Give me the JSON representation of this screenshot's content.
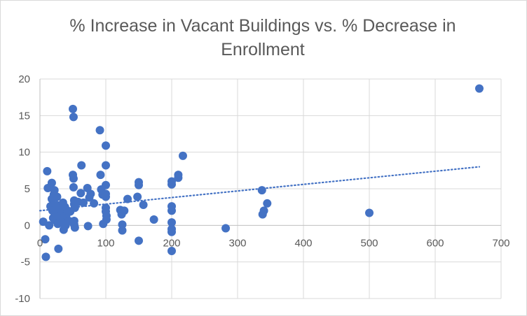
{
  "chart_data": {
    "type": "scatter",
    "title": "% Increase in Vacant Buildings vs. % Decrease in Enrollment",
    "xlabel": "",
    "ylabel": "",
    "xlim": [
      0,
      700
    ],
    "ylim": [
      -10,
      20
    ],
    "x_ticks": [
      0,
      100,
      200,
      300,
      400,
      500,
      600,
      700
    ],
    "y_ticks": [
      -10,
      -5,
      0,
      5,
      10,
      15,
      20
    ],
    "grid": true,
    "legend": "none",
    "marker_color": "#4472C4",
    "trendline": {
      "type": "linear",
      "style": "dotted",
      "color": "#4472C4",
      "x": [
        0,
        667
      ],
      "y": [
        2.0,
        8.0
      ]
    },
    "points": [
      {
        "x": 5,
        "y": 0.5
      },
      {
        "x": 8,
        "y": -1.9
      },
      {
        "x": 9,
        "y": -4.3
      },
      {
        "x": 11,
        "y": 7.4
      },
      {
        "x": 12,
        "y": 5.1
      },
      {
        "x": 14,
        "y": 0.0
      },
      {
        "x": 16,
        "y": 2.6
      },
      {
        "x": 18,
        "y": 5.8
      },
      {
        "x": 18,
        "y": 3.6
      },
      {
        "x": 19,
        "y": 2.0
      },
      {
        "x": 20,
        "y": 1.0
      },
      {
        "x": 21,
        "y": 4.2
      },
      {
        "x": 22,
        "y": 4.8
      },
      {
        "x": 23,
        "y": 0.7
      },
      {
        "x": 24,
        "y": 1.6
      },
      {
        "x": 25,
        "y": 2.8
      },
      {
        "x": 26,
        "y": 3.9
      },
      {
        "x": 27,
        "y": 0.2
      },
      {
        "x": 28,
        "y": -3.2
      },
      {
        "x": 29,
        "y": 1.2
      },
      {
        "x": 30,
        "y": 2.3
      },
      {
        "x": 32,
        "y": 0.9
      },
      {
        "x": 34,
        "y": 0.4
      },
      {
        "x": 35,
        "y": 3.1
      },
      {
        "x": 36,
        "y": -0.6
      },
      {
        "x": 37,
        "y": 1.8
      },
      {
        "x": 38,
        "y": 2.5
      },
      {
        "x": 39,
        "y": 0.0
      },
      {
        "x": 40,
        "y": 1.4
      },
      {
        "x": 42,
        "y": 2.0
      },
      {
        "x": 44,
        "y": 0.6
      },
      {
        "x": 46,
        "y": 1.9
      },
      {
        "x": 50,
        "y": 15.9
      },
      {
        "x": 51,
        "y": 14.8
      },
      {
        "x": 50,
        "y": 6.9
      },
      {
        "x": 51,
        "y": 6.4
      },
      {
        "x": 51,
        "y": 5.2
      },
      {
        "x": 52,
        "y": 3.4
      },
      {
        "x": 52,
        "y": 2.9
      },
      {
        "x": 53,
        "y": 2.4
      },
      {
        "x": 52,
        "y": 0.6
      },
      {
        "x": 52,
        "y": 0.1
      },
      {
        "x": 53,
        "y": -0.3
      },
      {
        "x": 58,
        "y": 3.2
      },
      {
        "x": 62,
        "y": 4.4
      },
      {
        "x": 63,
        "y": 8.2
      },
      {
        "x": 66,
        "y": 3.1
      },
      {
        "x": 72,
        "y": 5.1
      },
      {
        "x": 73,
        "y": -0.1
      },
      {
        "x": 75,
        "y": 3.8
      },
      {
        "x": 77,
        "y": 4.3
      },
      {
        "x": 82,
        "y": 3.0
      },
      {
        "x": 91,
        "y": 13.0
      },
      {
        "x": 92,
        "y": 6.9
      },
      {
        "x": 93,
        "y": 4.9
      },
      {
        "x": 95,
        "y": 4.2
      },
      {
        "x": 96,
        "y": 0.2
      },
      {
        "x": 100,
        "y": 10.9
      },
      {
        "x": 100,
        "y": 8.2
      },
      {
        "x": 100,
        "y": 5.5
      },
      {
        "x": 100,
        "y": 4.3
      },
      {
        "x": 100,
        "y": 3.9
      },
      {
        "x": 100,
        "y": 2.4
      },
      {
        "x": 100,
        "y": 1.9
      },
      {
        "x": 101,
        "y": 1.3
      },
      {
        "x": 101,
        "y": 0.8
      },
      {
        "x": 122,
        "y": 2.1
      },
      {
        "x": 124,
        "y": 1.5
      },
      {
        "x": 125,
        "y": 0.1
      },
      {
        "x": 125,
        "y": -0.7
      },
      {
        "x": 128,
        "y": 2.0
      },
      {
        "x": 133,
        "y": 3.6
      },
      {
        "x": 148,
        "y": 3.9
      },
      {
        "x": 150,
        "y": 5.9
      },
      {
        "x": 150,
        "y": 5.5
      },
      {
        "x": 150,
        "y": -2.1
      },
      {
        "x": 157,
        "y": 2.8
      },
      {
        "x": 173,
        "y": 0.8
      },
      {
        "x": 200,
        "y": 6.0
      },
      {
        "x": 200,
        "y": 5.6
      },
      {
        "x": 200,
        "y": 2.6
      },
      {
        "x": 200,
        "y": 2.0
      },
      {
        "x": 200,
        "y": 0.4
      },
      {
        "x": 200,
        "y": -0.5
      },
      {
        "x": 200,
        "y": -0.9
      },
      {
        "x": 200,
        "y": -3.5
      },
      {
        "x": 210,
        "y": 6.9
      },
      {
        "x": 210,
        "y": 6.5
      },
      {
        "x": 217,
        "y": 9.5
      },
      {
        "x": 282,
        "y": -0.4
      },
      {
        "x": 337,
        "y": 4.8
      },
      {
        "x": 338,
        "y": 1.5
      },
      {
        "x": 340,
        "y": 2.0
      },
      {
        "x": 345,
        "y": 3.0
      },
      {
        "x": 500,
        "y": 1.7
      },
      {
        "x": 667,
        "y": 18.7
      }
    ]
  }
}
